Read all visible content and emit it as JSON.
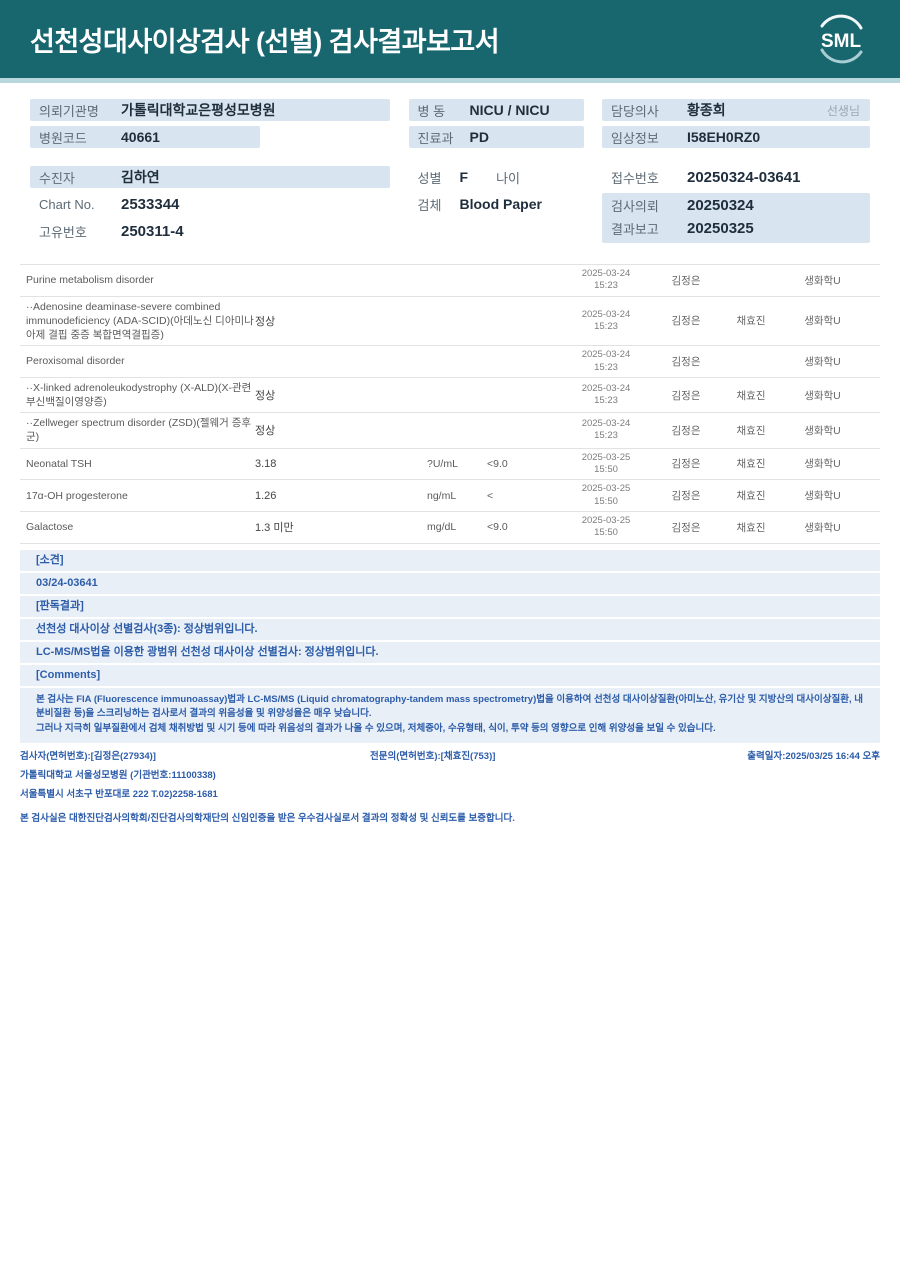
{
  "header": {
    "title": "선천성대사이상검사 (선별) 검사결과보고서",
    "logo_text": "SML",
    "bg_color": "#18666e"
  },
  "info": {
    "referrer_label": "의뢰기관명",
    "referrer_value": "가톨릭대학교은평성모병원",
    "hospital_code_label": "병원코드",
    "hospital_code_value": "40661",
    "patient_label": "수진자",
    "patient_value": "김하연",
    "chart_label": "Chart No.",
    "chart_value": "2533344",
    "unique_label": "고유번호",
    "unique_value": "250311-4",
    "ward_label": "병 동",
    "ward_value": "NICU / NICU",
    "dept_label": "진료과",
    "dept_value": "PD",
    "sex_label": "성별",
    "sex_value": "F",
    "age_label": "나이",
    "age_value": "",
    "specimen_label": "검체",
    "specimen_value": "Blood Paper",
    "doctor_label": "담당의사",
    "doctor_value": "황종희",
    "doctor_suffix": "선생님",
    "clinical_label": "임상정보",
    "clinical_value": "I58EH0RZ0",
    "receipt_label": "접수번호",
    "receipt_value": "20250324-03641",
    "request_label": "검사의뢰",
    "request_value": "20250324",
    "report_label": "결과보고",
    "report_value": "20250325"
  },
  "results": {
    "rows": [
      {
        "name": "Purine metabolism disorder",
        "result": "",
        "unit": "",
        "ref": "",
        "date": "2025-03-24",
        "time": "15:23",
        "analyst": "김정은",
        "specialist": "",
        "lab": "생화학U"
      },
      {
        "name": "··Adenosine deaminase-severe combined immunodeficiency (ADA-SCID)(아데노신 디아미나아제 결핍 중증 복합면역결핍증)",
        "result": "정상",
        "unit": "",
        "ref": "",
        "date": "2025-03-24",
        "time": "15:23",
        "analyst": "김정은",
        "specialist": "채효진",
        "lab": "생화학U"
      },
      {
        "name": "Peroxisomal disorder",
        "result": "",
        "unit": "",
        "ref": "",
        "date": "2025-03-24",
        "time": "15:23",
        "analyst": "김정은",
        "specialist": "",
        "lab": "생화학U"
      },
      {
        "name": "··X-linked adrenoleukodystrophy (X-ALD)(X-관련 부신백질이영양증)",
        "result": "정상",
        "unit": "",
        "ref": "",
        "date": "2025-03-24",
        "time": "15:23",
        "analyst": "김정은",
        "specialist": "채효진",
        "lab": "생화학U"
      },
      {
        "name": "··Zellweger spectrum disorder (ZSD)(젤웨거 증후군)",
        "result": "정상",
        "unit": "",
        "ref": "",
        "date": "2025-03-24",
        "time": "15:23",
        "analyst": "김정은",
        "specialist": "채효진",
        "lab": "생화학U"
      },
      {
        "name": "Neonatal TSH",
        "result": "3.18",
        "unit": "?U/mL",
        "ref": "<9.0",
        "date": "2025-03-25",
        "time": "15:50",
        "analyst": "김정은",
        "specialist": "채효진",
        "lab": "생화학U"
      },
      {
        "name": "17α-OH progesterone",
        "result": "1.26",
        "unit": "ng/mL",
        "ref": "<",
        "date": "2025-03-25",
        "time": "15:50",
        "analyst": "김정은",
        "specialist": "채효진",
        "lab": "생화학U"
      },
      {
        "name": "Galactose",
        "result": "1.3 미만",
        "unit": "mg/dL",
        "ref": "<9.0",
        "date": "2025-03-25",
        "time": "15:50",
        "analyst": "김정은",
        "specialist": "채효진",
        "lab": "생화학U"
      }
    ]
  },
  "findings": {
    "bands": [
      "[소견]",
      "03/24-03641",
      "[판독결과]",
      "선천성 대사이상 선별검사(3종): 정상범위입니다.",
      "LC-MS/MS법을 이용한 광범위 선천성 대사이상 선별검사: 정상범위입니다.",
      "[Comments]"
    ],
    "comment_lines": [
      "본 검사는 FIA (Fluorescence immunoassay)법과 LC-MS/MS (Liquid chromatography-tandem mass spectrometry)법을 이용하여 선천성 대사이상질환(아미노산, 유기산 및 지방산의 대사이상질환, 내분비질환 등)을 스크리닝하는 검사로서 결과의 위음성율 및 위양성율은 매우 낮습니다.",
      "그러나 지극히 일부질환에서 검체 채취방법 및 시기 등에 따라 위음성의 결과가 나올 수 있으며, 저체중아, 수유형태, 식이, 투약 등의 영향으로 인해 위양성을 보일 수 있습니다."
    ]
  },
  "footer": {
    "examiner": "검사자(면허번호):[김정은(27934)]",
    "specialist": "전문의(면허번호):[채효진(753)]",
    "printed": "출력일자:2025/03/25 16:44 오후",
    "hospital": "가톨릭대학교 서울성모병원 (기관번호:11100338)",
    "address": "서울특별시 서초구 반포대로 222 T.02)2258-1681",
    "certification": "본 검사실은 대한진단검사의학회/진단검사의학재단의 신임인증을 받은 우수검사실로서 결과의 정확성 및 신뢰도를 보증합니다."
  }
}
